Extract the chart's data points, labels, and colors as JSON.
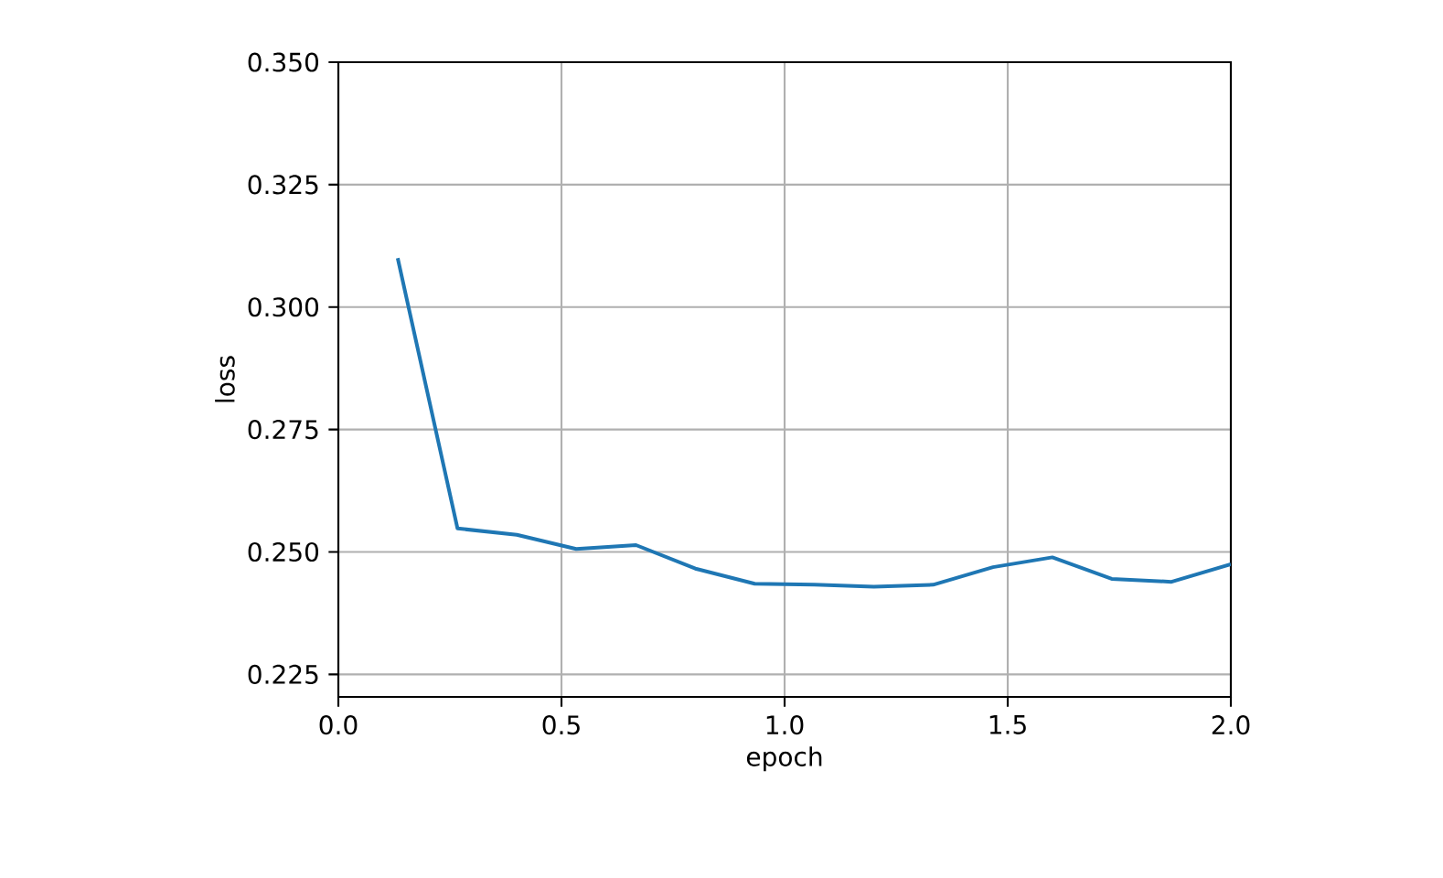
{
  "chart_data": {
    "type": "line",
    "xlabel": "epoch",
    "ylabel": "loss",
    "x": [
      0.133,
      0.267,
      0.4,
      0.533,
      0.667,
      0.8,
      0.933,
      1.067,
      1.2,
      1.333,
      1.467,
      1.6,
      1.733,
      1.867,
      2.0
    ],
    "series": [
      {
        "color": "#1f77b4",
        "values": [
          0.31,
          0.2548,
          0.2535,
          0.2506,
          0.2514,
          0.2466,
          0.2435,
          0.2433,
          0.2429,
          0.2433,
          0.2469,
          0.2489,
          0.2445,
          0.2439,
          0.2475
        ]
      }
    ],
    "xlim": [
      0.0,
      2.0
    ],
    "ylim": [
      0.2204,
      0.35
    ],
    "xticks": [
      {
        "value": 0.0,
        "label": "0.0"
      },
      0.5,
      {
        "value": 1.0,
        "label": "1.0"
      },
      1.5,
      {
        "value": 2.0,
        "label": "2.0"
      }
    ],
    "yticks": [
      0.225,
      {
        "value": 0.25,
        "label": "0.250"
      },
      0.275,
      {
        "value": 0.3,
        "label": "0.300"
      },
      0.325,
      {
        "value": 0.35,
        "label": "0.350"
      }
    ],
    "grid": true
  }
}
